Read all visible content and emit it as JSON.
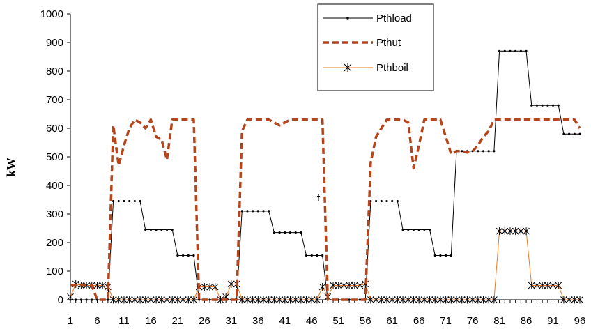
{
  "chart_data": {
    "type": "line",
    "title": "",
    "xlabel": "",
    "ylabel": "kW",
    "ylim": [
      0,
      1000
    ],
    "yticks": [
      0,
      100,
      200,
      300,
      400,
      500,
      600,
      700,
      800,
      900,
      1000
    ],
    "xlim": [
      1,
      96
    ],
    "xticks": [
      1,
      6,
      11,
      16,
      21,
      26,
      31,
      36,
      41,
      46,
      51,
      56,
      61,
      66,
      71,
      76,
      81,
      86,
      91,
      96
    ],
    "grid": false,
    "legend_position": "top-right",
    "annotation": "f",
    "series": [
      {
        "name": "Pthload",
        "color": "#000000",
        "style": "solid-dotted",
        "values": [
          0,
          0,
          0,
          0,
          0,
          0,
          0,
          0,
          345,
          345,
          345,
          345,
          345,
          345,
          245,
          245,
          245,
          245,
          245,
          245,
          155,
          155,
          155,
          155,
          0,
          0,
          0,
          0,
          0,
          0,
          0,
          0,
          310,
          310,
          310,
          310,
          310,
          310,
          235,
          235,
          235,
          235,
          235,
          235,
          155,
          155,
          155,
          155,
          0,
          0,
          0,
          0,
          0,
          0,
          0,
          0,
          345,
          345,
          345,
          345,
          345,
          345,
          245,
          245,
          245,
          245,
          245,
          245,
          155,
          155,
          155,
          155,
          520,
          520,
          520,
          520,
          520,
          520,
          520,
          520,
          870,
          870,
          870,
          870,
          870,
          870,
          680,
          680,
          680,
          680,
          680,
          680,
          580,
          580,
          580,
          580
        ]
      },
      {
        "name": "Pthut",
        "color": "#b5451b",
        "style": "dashed",
        "values": [
          50,
          50,
          50,
          50,
          50,
          0,
          0,
          0,
          610,
          470,
          540,
          600,
          630,
          620,
          600,
          630,
          570,
          560,
          490,
          630,
          630,
          630,
          630,
          630,
          0,
          0,
          0,
          0,
          0,
          0,
          0,
          0,
          590,
          630,
          630,
          630,
          630,
          630,
          620,
          610,
          620,
          630,
          630,
          630,
          630,
          630,
          630,
          630,
          0,
          0,
          0,
          0,
          0,
          0,
          0,
          0,
          480,
          570,
          600,
          630,
          630,
          630,
          630,
          620,
          460,
          540,
          630,
          630,
          630,
          630,
          570,
          510,
          520,
          520,
          515,
          520,
          540,
          570,
          590,
          630,
          630,
          630,
          630,
          630,
          630,
          630,
          630,
          630,
          630,
          630,
          630,
          630,
          630,
          630,
          630,
          600
        ]
      },
      {
        "name": "Pthboil",
        "color": "#f07820",
        "style": "solid-asterisk",
        "values": [
          10,
          55,
          50,
          50,
          50,
          50,
          50,
          45,
          0,
          0,
          0,
          0,
          0,
          0,
          0,
          0,
          0,
          0,
          0,
          0,
          0,
          0,
          0,
          0,
          45,
          45,
          45,
          45,
          0,
          10,
          55,
          55,
          0,
          0,
          0,
          0,
          0,
          0,
          0,
          0,
          0,
          0,
          0,
          0,
          0,
          0,
          0,
          45,
          10,
          50,
          50,
          50,
          50,
          50,
          50,
          55,
          0,
          0,
          0,
          0,
          0,
          0,
          0,
          0,
          0,
          0,
          0,
          0,
          0,
          0,
          0,
          0,
          0,
          0,
          0,
          0,
          0,
          0,
          0,
          0,
          240,
          240,
          240,
          240,
          240,
          240,
          50,
          50,
          50,
          50,
          50,
          50,
          0,
          0,
          0,
          0
        ]
      }
    ]
  }
}
